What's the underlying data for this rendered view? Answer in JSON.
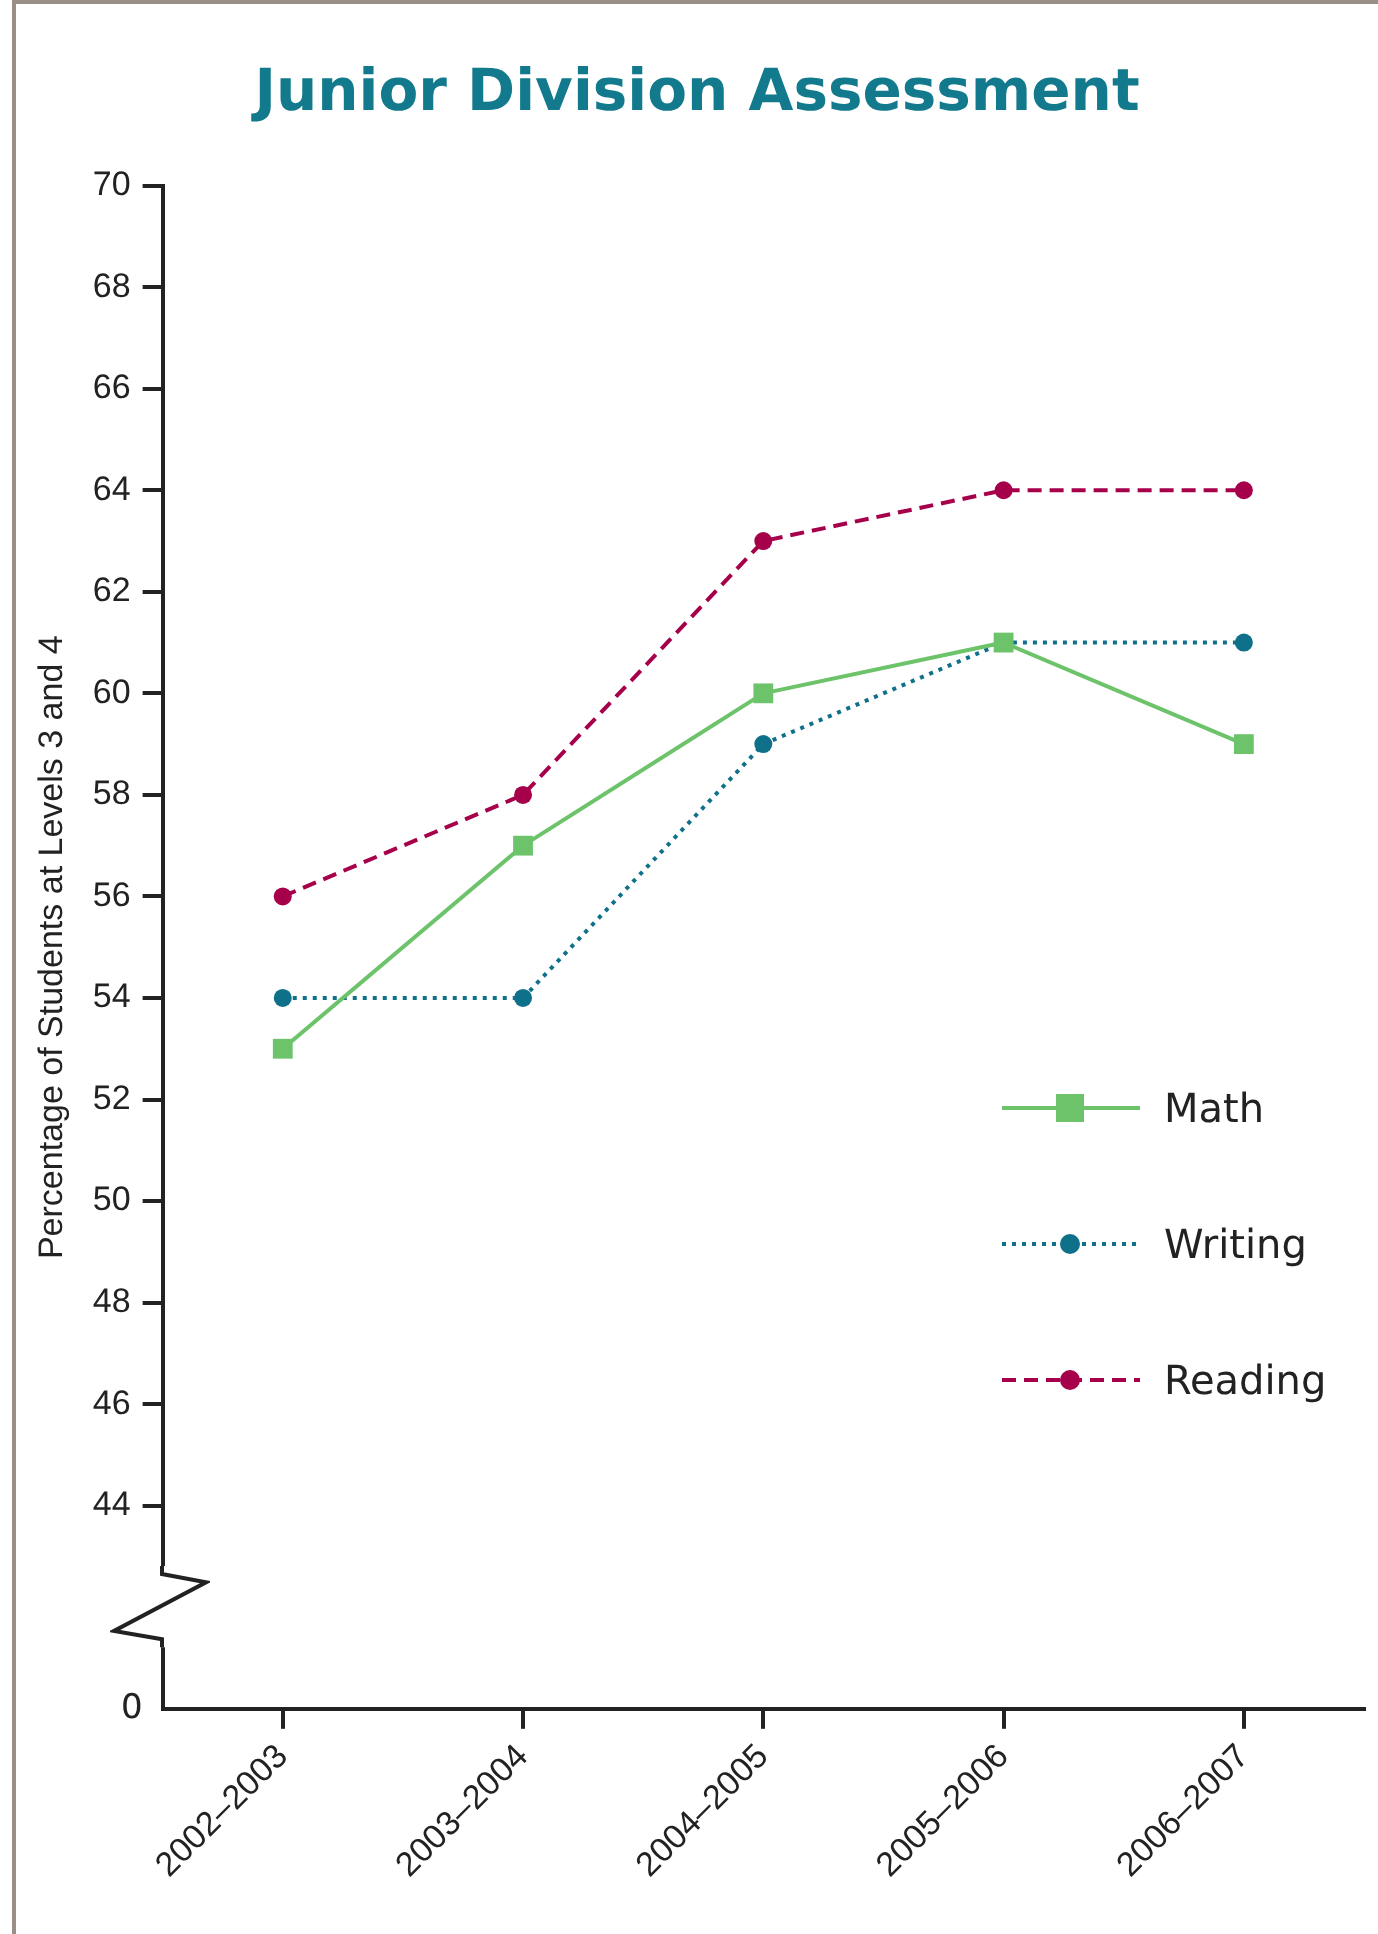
{
  "chart_data": {
    "type": "line",
    "title": "Junior Division Assessment",
    "ylabel": "Percentage of Students at Levels 3 and 4",
    "categories": [
      "2002–2003",
      "2003–2004",
      "2004–2005",
      "2005–2006",
      "2006–2007"
    ],
    "series": [
      {
        "name": "Math",
        "color": "#6cc36a",
        "values": [
          53,
          57,
          60,
          61,
          59
        ],
        "marker": "square",
        "line_style": "solid"
      },
      {
        "name": "Writing",
        "color": "#0f7089",
        "values": [
          54,
          54,
          59,
          61,
          61
        ],
        "marker": "circle",
        "line_style": "dotted"
      },
      {
        "name": "Reading",
        "color": "#a6004b",
        "values": [
          56,
          58,
          63,
          64,
          64
        ],
        "marker": "circle",
        "line_style": "dashed"
      }
    ],
    "ylim": [
      40,
      70
    ],
    "yticks": [
      44,
      46,
      48,
      50,
      52,
      54,
      56,
      58,
      60,
      62,
      64,
      66,
      68,
      70
    ],
    "annotations": [
      "0"
    ],
    "legend": "right",
    "grid": false
  }
}
